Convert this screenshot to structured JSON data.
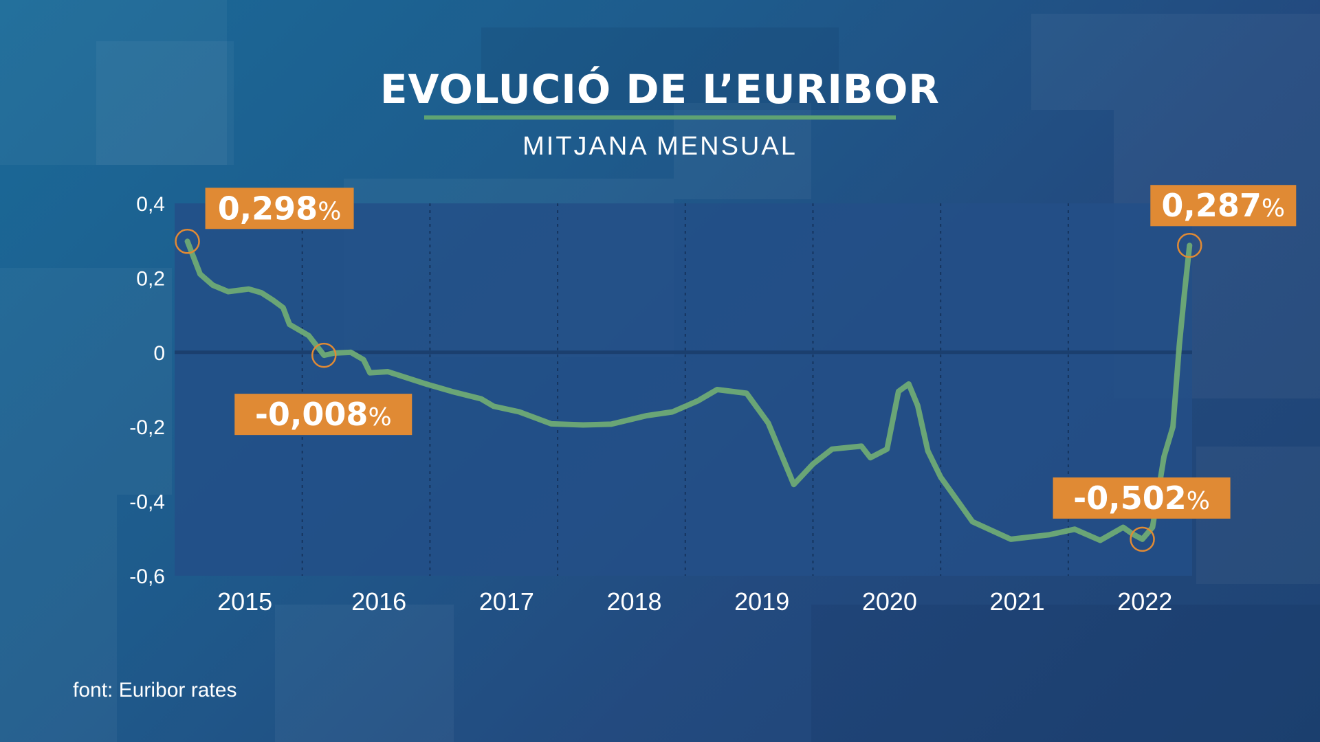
{
  "title": "EVOLUCIÓ DE L’EURIBOR",
  "subtitle": "MITJANA MENSUAL",
  "source": "font: Euribor rates",
  "colors": {
    "line": "#6aa576",
    "callout_bg": "#e08a34",
    "callout_ring": "#e08a34",
    "plot_bg": "#234f87",
    "zero_line": "#1b3f6e",
    "text": "#ffffff"
  },
  "chart_data": {
    "type": "line",
    "title": "EVOLUCIÓ DE L’EURIBOR",
    "subtitle": "MITJANA MENSUAL",
    "xlabel": "",
    "ylabel": "",
    "ylim": [
      -0.6,
      0.4
    ],
    "xlim": [
      2014.9,
      2022.87
    ],
    "y_ticks": [
      0.4,
      0.2,
      0,
      -0.2,
      -0.4,
      -0.6
    ],
    "y_tick_labels": [
      "0,4",
      "0,2",
      "0",
      "-0,2",
      "-0,4",
      "-0,6"
    ],
    "x_tick_labels": [
      {
        "label": "2015",
        "x": 2015.45
      },
      {
        "label": "2016",
        "x": 2016.5
      },
      {
        "label": "2017",
        "x": 2017.5
      },
      {
        "label": "2018",
        "x": 2018.5
      },
      {
        "label": "2019",
        "x": 2019.5
      },
      {
        "label": "2020",
        "x": 2020.5
      },
      {
        "label": "2021",
        "x": 2021.5
      },
      {
        "label": "2022",
        "x": 2022.5
      }
    ],
    "gridlines_x": [
      2015.9,
      2016.9,
      2017.9,
      2018.9,
      2019.9,
      2020.9,
      2021.9
    ],
    "series": [
      {
        "values": [
          [
            2015.0,
            0.298
          ],
          [
            2015.1,
            0.21
          ],
          [
            2015.2,
            0.18
          ],
          [
            2015.32,
            0.163
          ],
          [
            2015.48,
            0.17
          ],
          [
            2015.58,
            0.16
          ],
          [
            2015.67,
            0.14
          ],
          [
            2015.75,
            0.12
          ],
          [
            2015.8,
            0.075
          ],
          [
            2015.95,
            0.045
          ],
          [
            2016.07,
            -0.008
          ],
          [
            2016.15,
            -0.002
          ],
          [
            2016.28,
            0.0
          ],
          [
            2016.38,
            -0.02
          ],
          [
            2016.43,
            -0.055
          ],
          [
            2016.57,
            -0.052
          ],
          [
            2016.87,
            -0.085
          ],
          [
            2017.07,
            -0.105
          ],
          [
            2017.3,
            -0.125
          ],
          [
            2017.4,
            -0.145
          ],
          [
            2017.6,
            -0.16
          ],
          [
            2017.85,
            -0.192
          ],
          [
            2018.1,
            -0.195
          ],
          [
            2018.32,
            -0.193
          ],
          [
            2018.6,
            -0.17
          ],
          [
            2018.8,
            -0.16
          ],
          [
            2019.0,
            -0.13
          ],
          [
            2019.15,
            -0.1
          ],
          [
            2019.38,
            -0.11
          ],
          [
            2019.55,
            -0.19
          ],
          [
            2019.75,
            -0.355
          ],
          [
            2019.9,
            -0.3
          ],
          [
            2020.05,
            -0.26
          ],
          [
            2020.28,
            -0.252
          ],
          [
            2020.35,
            -0.283
          ],
          [
            2020.48,
            -0.26
          ],
          [
            2020.57,
            -0.105
          ],
          [
            2020.65,
            -0.085
          ],
          [
            2020.72,
            -0.143
          ],
          [
            2020.8,
            -0.265
          ],
          [
            2020.9,
            -0.335
          ],
          [
            2021.15,
            -0.455
          ],
          [
            2021.45,
            -0.502
          ],
          [
            2021.75,
            -0.49
          ],
          [
            2021.95,
            -0.475
          ],
          [
            2022.15,
            -0.505
          ],
          [
            2022.33,
            -0.47
          ],
          [
            2022.4,
            -0.487
          ],
          [
            2022.48,
            -0.502
          ],
          [
            2022.56,
            -0.47
          ],
          [
            2022.65,
            -0.28
          ],
          [
            2022.72,
            -0.2
          ],
          [
            2022.77,
            0.02
          ],
          [
            2022.81,
            0.16
          ],
          [
            2022.85,
            0.287
          ]
        ]
      }
    ],
    "callouts": [
      {
        "value": "0,298",
        "unit": "%",
        "x": 2015.0,
        "y": 0.298
      },
      {
        "value": "-0,008",
        "unit": "%",
        "x": 2016.07,
        "y": -0.008
      },
      {
        "value": "-0,502",
        "unit": "%",
        "x": 2022.48,
        "y": -0.502
      },
      {
        "value": "0,287",
        "unit": "%",
        "x": 2022.85,
        "y": 0.287
      }
    ],
    "grid": true,
    "legend": "none"
  }
}
